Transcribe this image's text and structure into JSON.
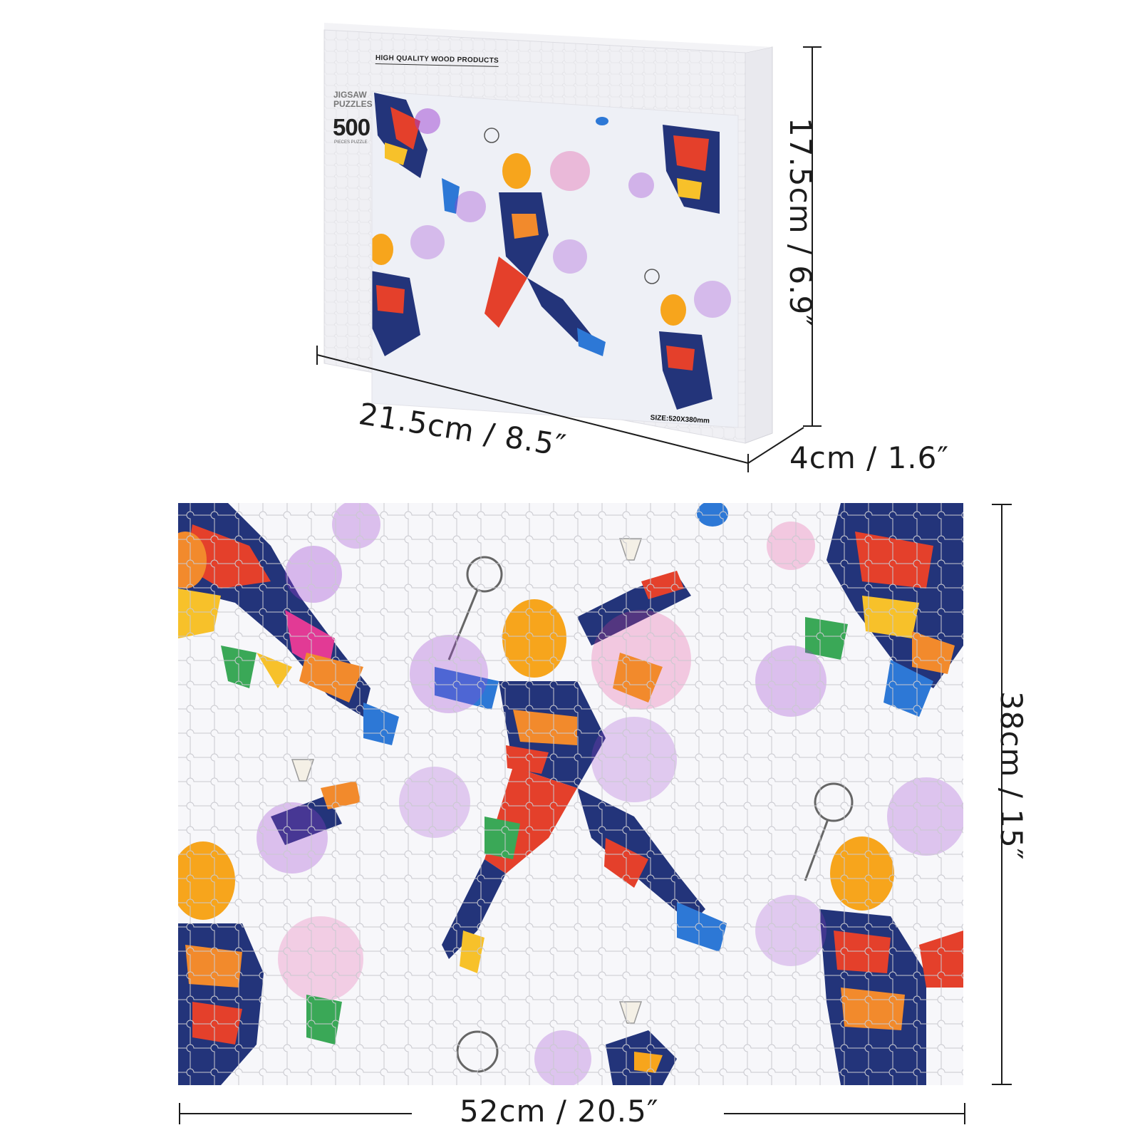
{
  "box": {
    "brand": "HIGH QUALITY WOOD PRODUCTS",
    "kind_line1": "JIGSAW",
    "kind_line2": "PUZZLES",
    "piece_count": "500",
    "sub_text": "PIECES PUZZLE",
    "size_text": "SIZE:520X380mm"
  },
  "dimensions": {
    "box_width": "21.5cm / 8.5″",
    "box_height": "17.5cm / 6.9″",
    "box_depth": "4cm / 1.6″",
    "puzzle_height": "38cm / 15″",
    "puzzle_width": "52cm / 20.5″"
  },
  "colors": {
    "orange": "#f28a2c",
    "yellow": "#f7c12a",
    "navy": "#23347a",
    "blue": "#2d78d6",
    "purple": "#9b3fd1",
    "magenta": "#e23a95",
    "red": "#e4402b",
    "green": "#3aa857",
    "line": "#1c1c1c"
  }
}
